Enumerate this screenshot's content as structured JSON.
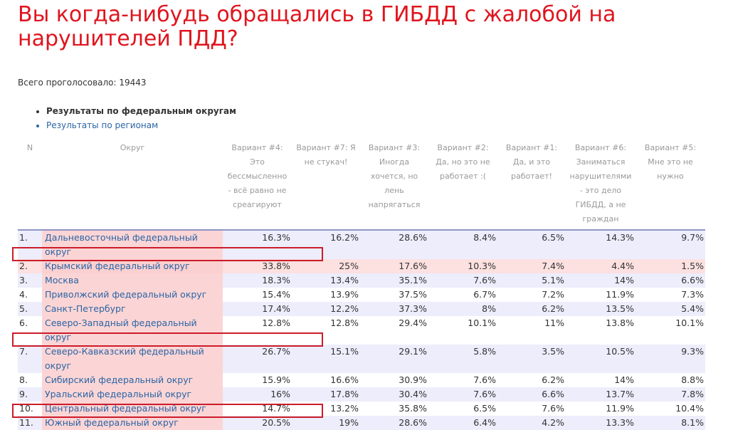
{
  "poll": {
    "title": "Вы когда-нибудь обращались в ГИБДД с жалобой на нарушителей ПДД?",
    "total_votes": "Всего проголосовало: 19443",
    "links": [
      {
        "label": "Результаты по федеральным округам",
        "active": true
      },
      {
        "label": "Результаты по регионам",
        "active": false
      }
    ]
  },
  "table": {
    "headers": [
      "N",
      "Округ",
      "Вариант #4: Это бессмысленно - всё равно не среагируют",
      "Вариант #7: Я не стукач!",
      "Вариант #3: Иногда хочется, но лень напрягаться",
      "Вариант #2: Да, но это не работает :(",
      "Вариант #1: Да, и это работает!",
      "Вариант #6: Заниматься нарушителями - это дело ГИБДД, а не граждан",
      "Вариант #5: Мне это не нужно"
    ],
    "rows": [
      {
        "n": "1.",
        "district": "Дальневосточный федеральный округ",
        "values": [
          "16.3%",
          "16.2%",
          "28.6%",
          "8.4%",
          "6.5%",
          "14.3%",
          "9.7%"
        ]
      },
      {
        "n": "2.",
        "district": "Крымский федеральный округ",
        "values": [
          "33.8%",
          "25%",
          "17.6%",
          "10.3%",
          "7.4%",
          "4.4%",
          "1.5%"
        ]
      },
      {
        "n": "3.",
        "district": "Москва",
        "values": [
          "18.3%",
          "13.4%",
          "35.1%",
          "7.6%",
          "5.1%",
          "14%",
          "6.6%"
        ]
      },
      {
        "n": "4.",
        "district": "Приволжский федеральный округ",
        "values": [
          "15.4%",
          "13.9%",
          "37.5%",
          "6.7%",
          "7.2%",
          "11.9%",
          "7.3%"
        ]
      },
      {
        "n": "5.",
        "district": "Санкт-Петербург",
        "values": [
          "17.4%",
          "12.2%",
          "37.3%",
          "8%",
          "6.2%",
          "13.5%",
          "5.4%"
        ]
      },
      {
        "n": "6.",
        "district": "Северо-Западный федеральный округ",
        "values": [
          "12.8%",
          "12.8%",
          "29.4%",
          "10.1%",
          "11%",
          "13.8%",
          "10.1%"
        ]
      },
      {
        "n": "7.",
        "district": "Северо-Кавказский федеральный округ",
        "values": [
          "26.7%",
          "15.1%",
          "29.1%",
          "5.8%",
          "3.5%",
          "10.5%",
          "9.3%"
        ]
      },
      {
        "n": "8.",
        "district": "Сибирский федеральный округ",
        "values": [
          "15.9%",
          "16.6%",
          "30.9%",
          "7.6%",
          "6.2%",
          "14%",
          "8.8%"
        ]
      },
      {
        "n": "9.",
        "district": "Уральский федеральный округ",
        "values": [
          "16%",
          "17.8%",
          "30.4%",
          "7.6%",
          "6.6%",
          "13.7%",
          "7.8%"
        ]
      },
      {
        "n": "10.",
        "district": "Центральный федеральный округ",
        "values": [
          "14.7%",
          "13.2%",
          "35.8%",
          "6.5%",
          "7.6%",
          "11.9%",
          "10.4%"
        ]
      },
      {
        "n": "11.",
        "district": "Южный федеральный округ",
        "values": [
          "20.5%",
          "19%",
          "28.6%",
          "6.4%",
          "4.2%",
          "13.3%",
          "8.1%"
        ]
      }
    ],
    "highlight_color": "#cc1c2a"
  }
}
